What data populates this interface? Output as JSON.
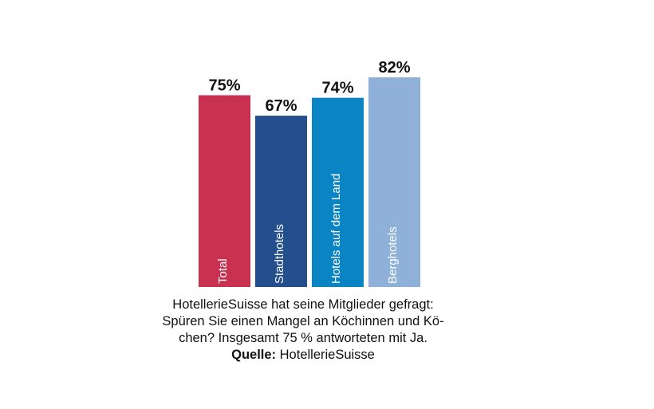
{
  "chart_data": {
    "type": "bar",
    "categories": [
      "Total",
      "Stadthotels",
      "Hotels auf dem Land",
      "Berghotels"
    ],
    "values": [
      75,
      67,
      74,
      82
    ],
    "value_labels": [
      "75%",
      "67%",
      "74%",
      "82%"
    ],
    "unit": "%",
    "colors": [
      "#c8314f",
      "#244f8c",
      "#0b84c4",
      "#8fb0d8"
    ],
    "ylim": [
      0,
      82
    ],
    "grid": false,
    "legend": "none",
    "title": "",
    "xlabel": "",
    "ylabel": ""
  },
  "caption": {
    "lines": [
      "HotellerieSuisse hat seine Mitglieder gefragt:",
      "Spüren Sie einen Mangel an Köchinnen und Kö-",
      "chen? Insgesamt 75 % antworteten mit Ja."
    ],
    "source_label": "Quelle:",
    "source_value": "HotellerieSuisse"
  }
}
